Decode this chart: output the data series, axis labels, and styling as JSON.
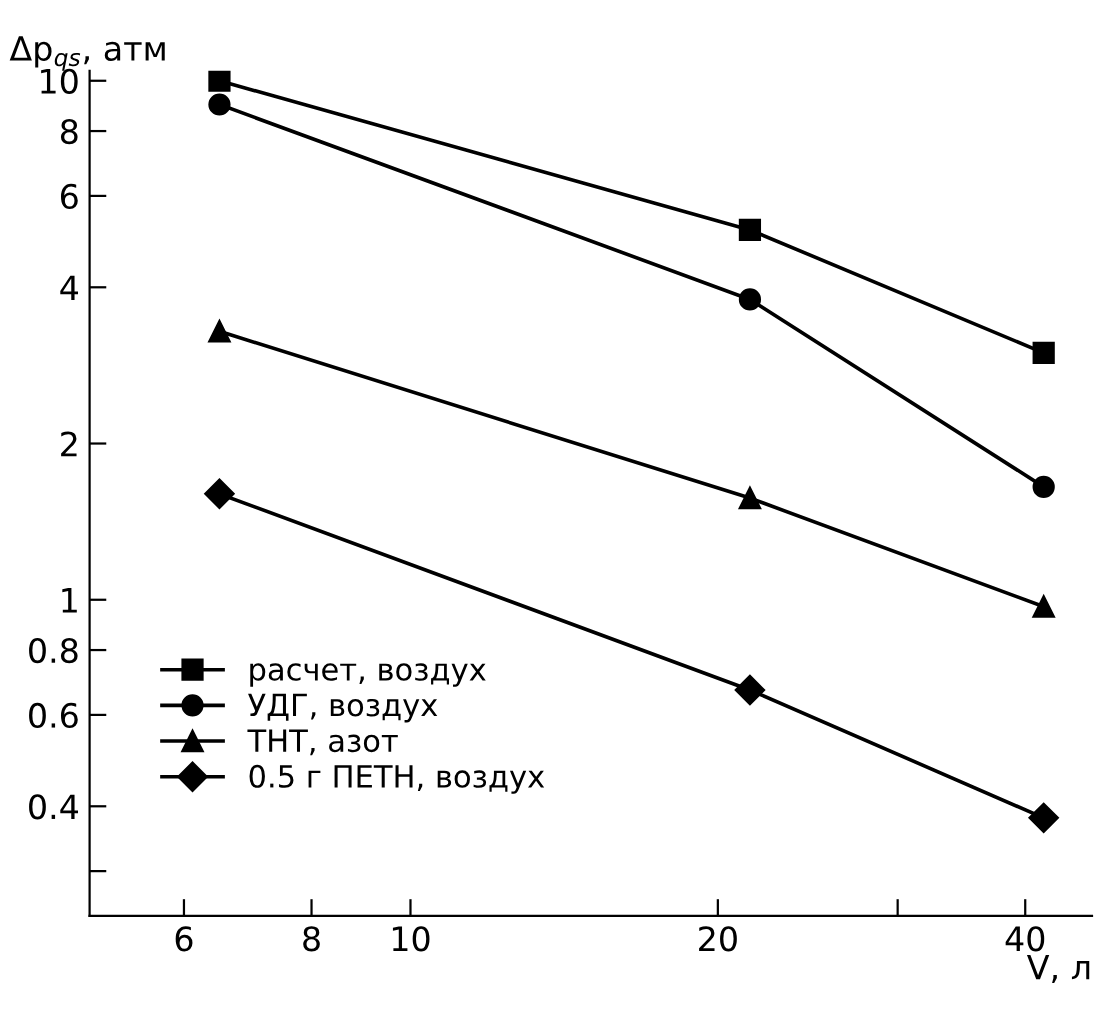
{
  "chart_data": {
    "type": "line",
    "ylabel": "Δp$_{qs}$, атм",
    "xlabel": "V, л",
    "log": "xy",
    "legend": "bottom left",
    "grid": false,
    "xlim": [
      4.85,
      46.5
    ],
    "xticks": [
      6,
      8,
      10,
      20,
      {
        "value": 30,
        "label": null
      },
      40
    ],
    "ylim": [
      0.246,
      10.45
    ],
    "yticks": [
      {
        "value": 0.3,
        "label": null
      },
      0.4,
      0.6,
      0.8,
      1,
      2,
      4,
      6,
      8,
      10
    ],
    "x": [
      6.5,
      21.5,
      41.7
    ],
    "series": [
      {
        "name": "расчет, воздух",
        "color": "#000000",
        "marker": "square",
        "values": [
          10.0,
          5.16,
          2.99
        ]
      },
      {
        "name": "УДГ, воздух",
        "color": "#000000",
        "marker": "circle",
        "values": [
          9.0,
          3.79,
          1.65
        ]
      },
      {
        "name": "ТНТ, азот",
        "color": "#000000",
        "marker": "triangle",
        "values": [
          3.29,
          1.57,
          0.97
        ]
      },
      {
        "name": "0.5 г ПЕТН, воздух",
        "color": "#000000",
        "marker": "diamond",
        "values": [
          1.6,
          0.67,
          0.38
        ]
      }
    ]
  }
}
